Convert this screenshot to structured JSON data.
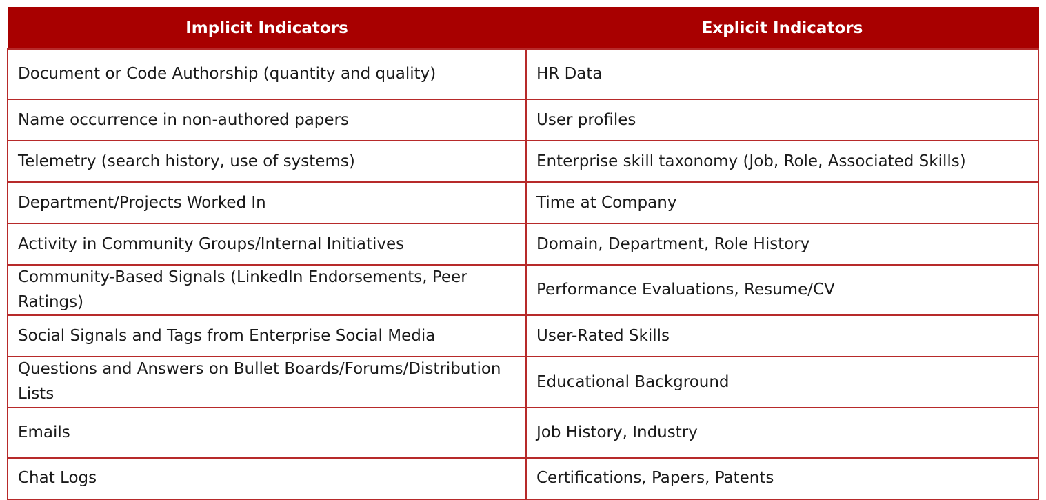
{
  "colors": {
    "header_bg": "#a80000",
    "header_text": "#ffffff",
    "border": "#b72a2a",
    "body_text": "#1a1a1a"
  },
  "table": {
    "headers": [
      "Implicit Indicators",
      "Explicit Indicators"
    ],
    "rows": [
      [
        "Document or Code Authorship (quantity and quality)",
        "HR Data"
      ],
      [
        "Name occurrence in non-authored papers",
        "User profiles"
      ],
      [
        "Telemetry (search history, use of systems)",
        "Enterprise skill taxonomy (Job, Role, Associated Skills)"
      ],
      [
        "Department/Projects Worked In",
        "Time at Company"
      ],
      [
        "Activity in Community Groups/Internal Initiatives",
        "Domain, Department, Role History"
      ],
      [
        "Community-Based Signals (LinkedIn Endorsements, Peer Ratings)",
        "Performance Evaluations, Resume/CV"
      ],
      [
        "Social Signals and Tags from Enterprise Social Media",
        "User-Rated Skills"
      ],
      [
        "Questions and Answers on Bullet Boards/Forums/Distribution Lists",
        "Educational Background"
      ],
      [
        "Emails",
        "Job History, Industry"
      ],
      [
        "Chat Logs",
        "Certifications, Papers, Patents"
      ]
    ]
  }
}
